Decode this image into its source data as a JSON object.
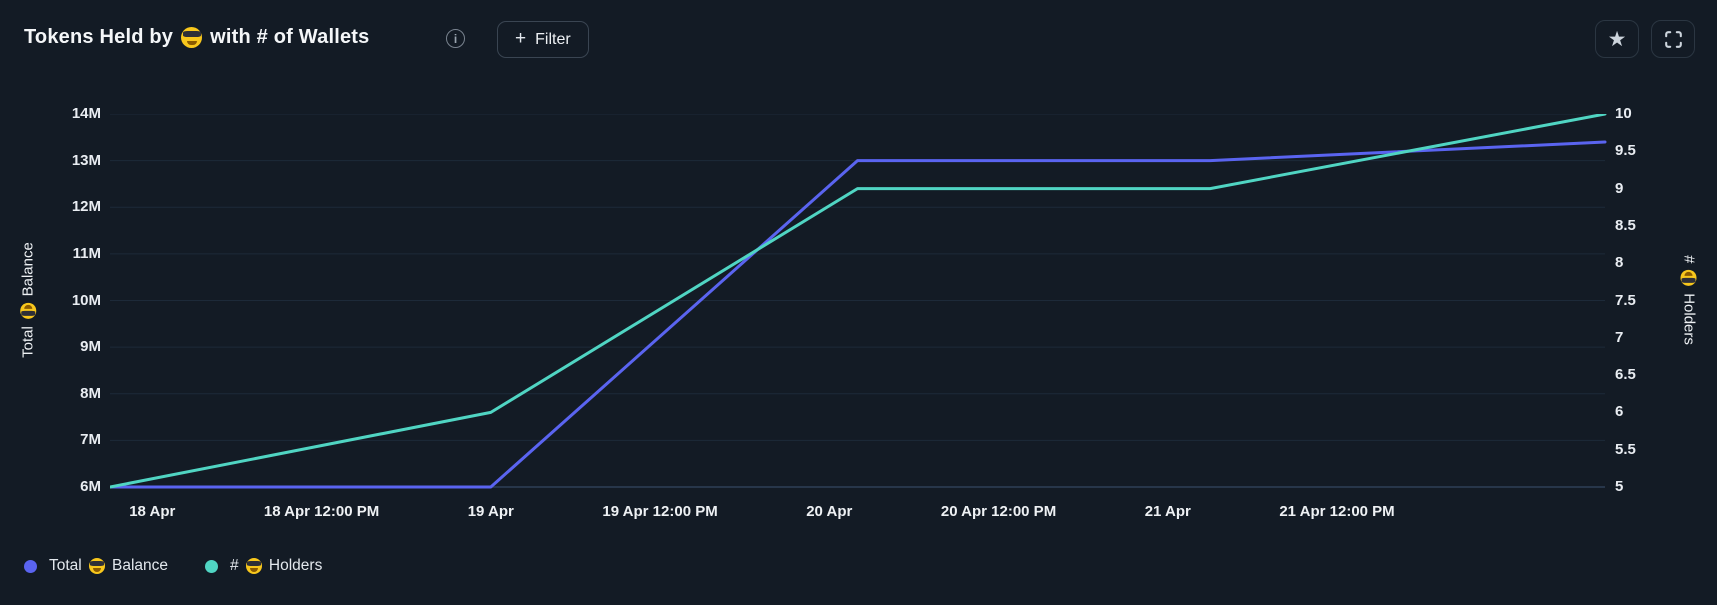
{
  "header": {
    "title_prefix": "Tokens Held by",
    "title_suffix": "with # of Wallets",
    "emoji_name": "smiling-face-with-sunglasses",
    "info_glyph": "i",
    "plus_glyph": "+",
    "filter_label": "Filter",
    "favorite_icon": "star-icon",
    "expand_icon": "fullscreen-corners-icon"
  },
  "colors": {
    "background": "#131b25",
    "grid_line": "#1d2a39",
    "baseline": "#2e4057",
    "balance_line": "#5a64f0",
    "holders_line": "#50d5c3",
    "emoji_yellow": "#f8c71c"
  },
  "chart_data": {
    "type": "line",
    "title": "Tokens Held by 😎 with # of Wallets",
    "x_axis": {
      "tick_labels": [
        "18 Apr",
        "18 Apr 12:00 PM",
        "19 Apr",
        "19 Apr 12:00 PM",
        "20 Apr",
        "20 Apr 12:00 PM",
        "21 Apr",
        "21 Apr 12:00 PM"
      ],
      "tick_hours": [
        0,
        12,
        24,
        36,
        48,
        60,
        72,
        84
      ],
      "range_hours": [
        -3,
        103
      ],
      "grid": "horizontal-only"
    },
    "left_axis": {
      "title": "Total 😎 Balance",
      "title_prefix": "Total",
      "title_suffix": "Balance",
      "tick_labels": [
        "14M",
        "13M",
        "12M",
        "11M",
        "10M",
        "9M",
        "8M",
        "7M",
        "6M"
      ],
      "min": 6000000,
      "max": 14000000
    },
    "right_axis": {
      "title": "# 😎 Holders",
      "title_prefix": "#",
      "title_suffix": "Holders",
      "tick_labels": [
        "10",
        "9.5",
        "9",
        "8.5",
        "8",
        "7.5",
        "7",
        "6.5",
        "6",
        "5.5",
        "5"
      ],
      "min": 5,
      "max": 10
    },
    "series": [
      {
        "name": "Total 😎 Balance",
        "axis": "left",
        "color": "#5a64f0",
        "hours": [
          -3,
          24,
          50,
          75,
          103
        ],
        "values_millions": [
          6.0,
          6.0,
          13.0,
          13.0,
          13.4
        ]
      },
      {
        "name": "# 😎 Holders",
        "axis": "right",
        "color": "#50d5c3",
        "hours": [
          -3,
          24,
          50,
          75,
          103
        ],
        "values": [
          5,
          6,
          9,
          9,
          10
        ]
      }
    ],
    "legend_position": "bottom-left"
  },
  "legend": {
    "items": [
      {
        "prefix": "Total",
        "suffix": "Balance",
        "color": "#5a64f0"
      },
      {
        "prefix": "#",
        "suffix": "Holders",
        "color": "#50d5c3"
      }
    ]
  }
}
